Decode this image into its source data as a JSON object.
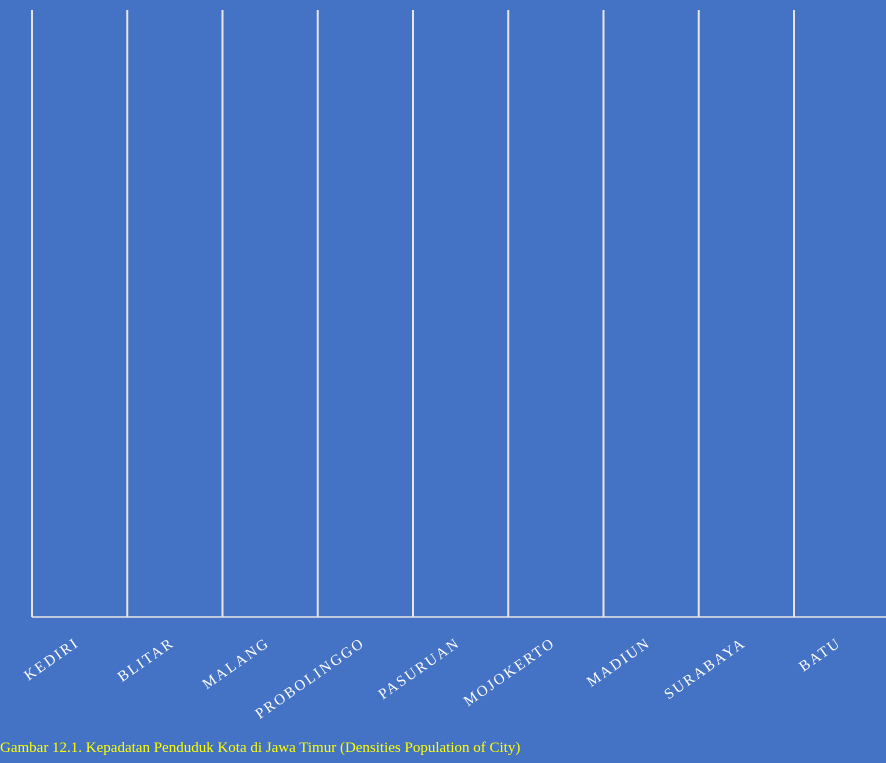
{
  "chart_data": {
    "type": "bar",
    "categories": [
      "KEDIRI",
      "BLITAR",
      "MALANG",
      "PROBOLINGGO",
      "PASURUAN",
      "MOJOKERTO",
      "MADIUN",
      "SURABAYA",
      "BATU"
    ],
    "caption": "Gambar 12.1. Kepadatan Penduduk Kota di Jawa Timur (Densities Population of City)",
    "background": "#4472c4",
    "line_color": "#e6e6e6",
    "caption_color": "#ffff00"
  }
}
